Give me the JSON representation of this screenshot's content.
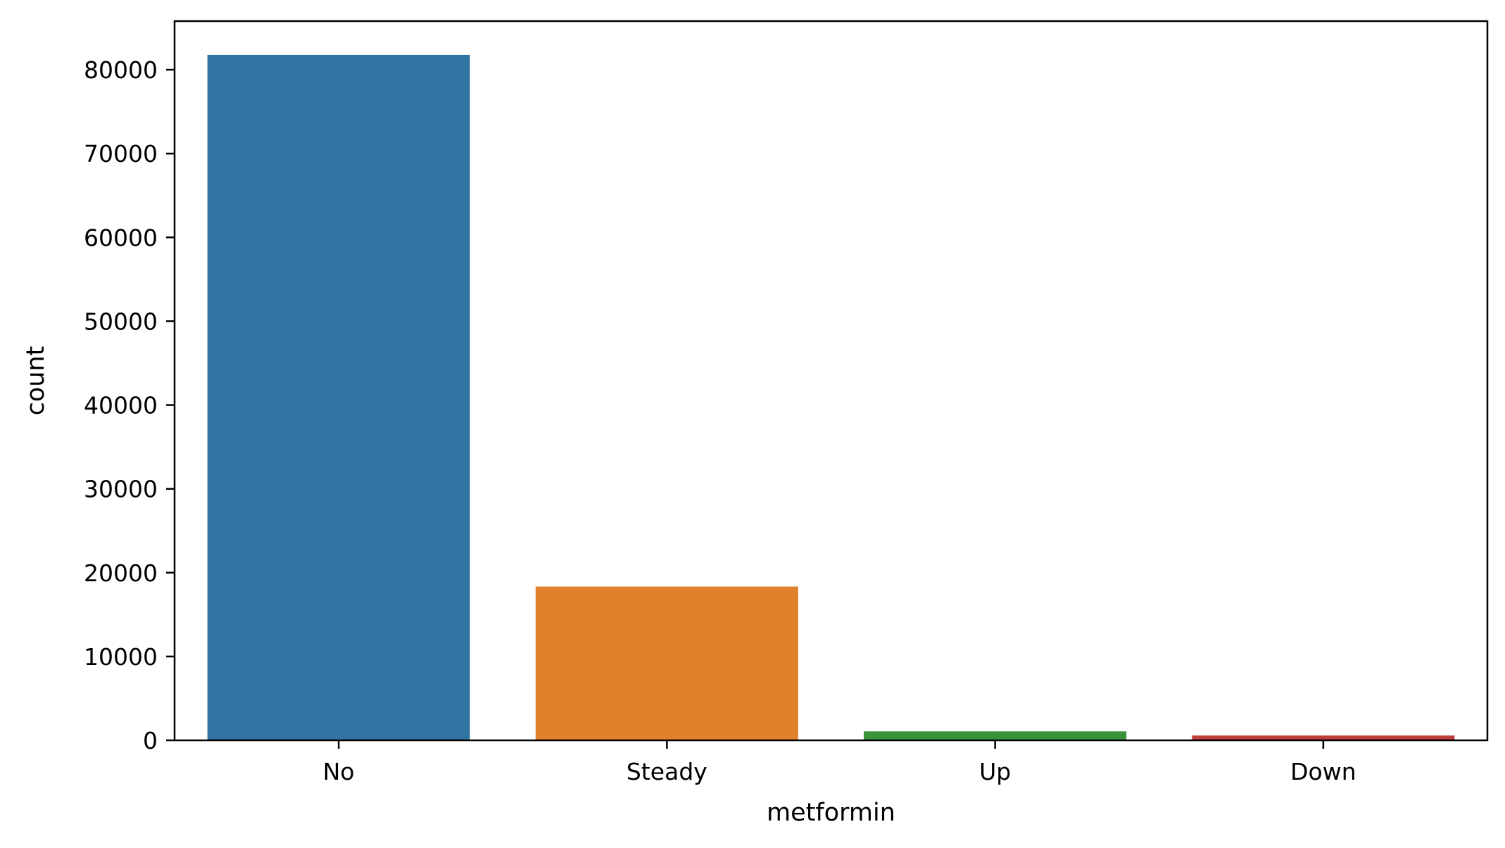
{
  "chart_data": {
    "type": "bar",
    "title": "",
    "xlabel": "metformin",
    "ylabel": "count",
    "categories": [
      "No",
      "Steady",
      "Up",
      "Down"
    ],
    "values": [
      81778,
      18346,
      1067,
      575
    ],
    "colors": [
      "#3274a1",
      "#e1812c",
      "#3a923a",
      "#c03d3e"
    ],
    "ylim": [
      0,
      85800
    ],
    "yticks": [
      0,
      10000,
      20000,
      30000,
      40000,
      50000,
      60000,
      70000,
      80000
    ],
    "ytick_labels": [
      "0",
      "10000",
      "20000",
      "30000",
      "40000",
      "50000",
      "60000",
      "70000",
      "80000"
    ],
    "grid": false,
    "legend": "none"
  }
}
